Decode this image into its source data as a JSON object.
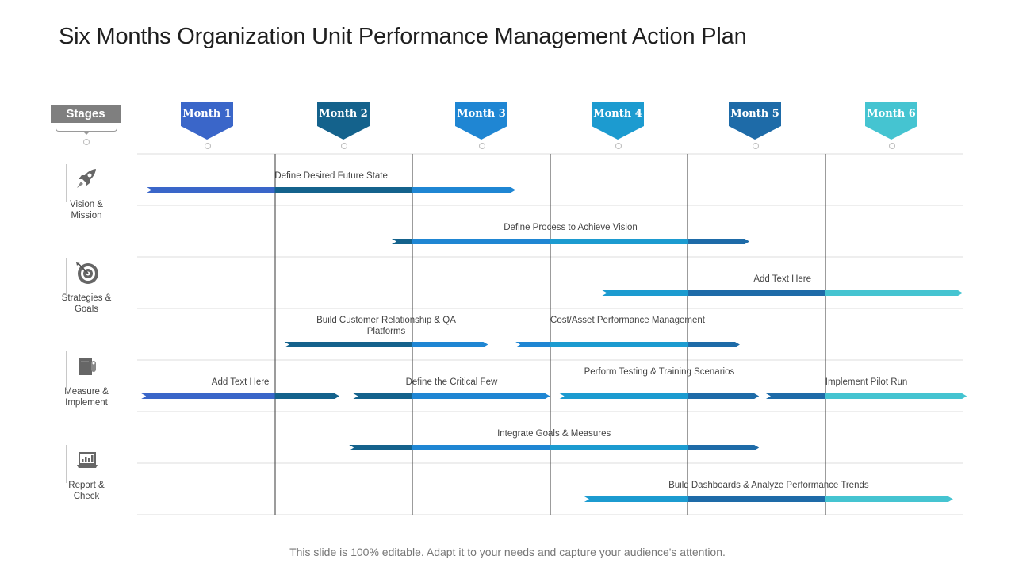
{
  "title": "Six Months Organization Unit Performance Management Action Plan",
  "stages_header": "Stages",
  "months": [
    {
      "label": "Month 1",
      "color": "#3a66c9"
    },
    {
      "label": "Month 2",
      "color": "#14628c"
    },
    {
      "label": "Month 3",
      "color": "#1f86d3"
    },
    {
      "label": "Month 4",
      "color": "#1c9bd0"
    },
    {
      "label": "Month 5",
      "color": "#1e6ba8"
    },
    {
      "label": "Month 6",
      "color": "#45c4d1"
    }
  ],
  "stages": [
    {
      "label_line1": "Vision &",
      "label_line2": "Mission",
      "icon": "rocket-icon"
    },
    {
      "label_line1": "Strategies &",
      "label_line2": "Goals",
      "icon": "target-icon"
    },
    {
      "label_line1": "Measure &",
      "label_line2": "Implement",
      "icon": "document-icon"
    },
    {
      "label_line1": "Report &",
      "label_line2": "Check",
      "icon": "laptop-chart-icon"
    }
  ],
  "tasks": [
    {
      "label": "Define Desired Future State",
      "row": 0,
      "start_month": 0.07,
      "end_month": 2.75
    },
    {
      "label": "Define Process to Achieve Vision",
      "row": 1,
      "start_month": 1.85,
      "end_month": 4.45
    },
    {
      "label": "Add Text Here",
      "row": 2,
      "start_month": 3.38,
      "end_month": 6.0
    },
    {
      "label": "Build Customer Relationship & QA Platforms",
      "row": 3,
      "start_month": 1.07,
      "end_month": 2.55
    },
    {
      "label": "Cost/Asset Performance Management",
      "row": 3,
      "start_month": 2.75,
      "end_month": 4.38
    },
    {
      "label": "Add Text Here",
      "row": 4,
      "start_month": 0.03,
      "end_month": 1.47
    },
    {
      "label": "Define the Critical Few",
      "row": 4,
      "start_month": 1.57,
      "end_month": 3.0
    },
    {
      "label": "Perform Testing & Training Scenarios",
      "row": 4,
      "start_month": 3.07,
      "end_month": 4.52
    },
    {
      "label": "Implement Pilot Run",
      "row": 4,
      "start_month": 4.57,
      "end_month": 6.03
    },
    {
      "label": "Integrate Goals & Measures",
      "row": 5,
      "start_month": 1.54,
      "end_month": 4.52
    },
    {
      "label": "Build Dashboards & Analyze Performance Trends",
      "row": 6,
      "start_month": 3.25,
      "end_month": 5.93
    }
  ],
  "footer": "This slide is 100% editable. Adapt it to your needs and capture your audience's attention."
}
